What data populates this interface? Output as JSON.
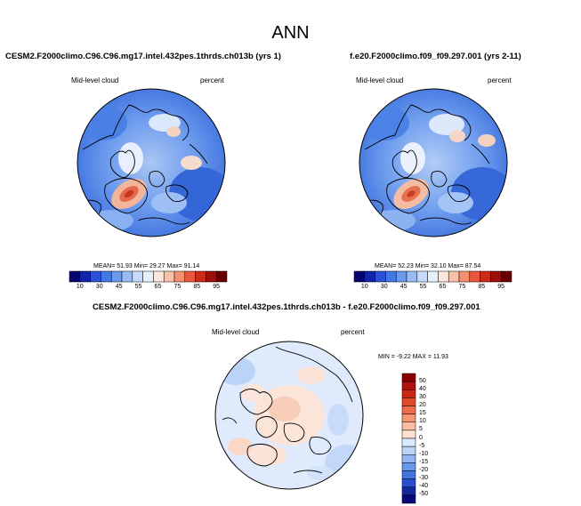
{
  "figure": {
    "title": "ANN"
  },
  "panels": [
    {
      "title": "CESM2.F2000climo.C96.C96.mg17.intel.432pes.1thrds.ch013b (yrs 1)",
      "variable": "Mid-level cloud",
      "units": "percent",
      "stats": "MEAN=  51.93  Min=  29.27  Max=  91.14",
      "colorbar": {
        "levels": [
          "10",
          "30",
          "45",
          "55",
          "65",
          "75",
          "85",
          "95"
        ],
        "colors": [
          "#08066e",
          "#1424a8",
          "#2b52d6",
          "#4378e8",
          "#6b99f0",
          "#98bbf5",
          "#c5dafa",
          "#e6f0fd",
          "#fde7dc",
          "#f9c2a8",
          "#f3906e",
          "#e8583e",
          "#cc2a18",
          "#9c0f08",
          "#660000"
        ]
      }
    },
    {
      "title": "f.e20.F2000climo.f09_f09.297.001 (yrs 2-11)",
      "variable": "Mid-level cloud",
      "units": "percent",
      "stats": "MEAN=  52.23  Min=  32.10  Max=  87.54",
      "colorbar": {
        "levels": [
          "10",
          "30",
          "45",
          "55",
          "65",
          "75",
          "85",
          "95"
        ],
        "colors": [
          "#08066e",
          "#1424a8",
          "#2b52d6",
          "#4378e8",
          "#6b99f0",
          "#98bbf5",
          "#c5dafa",
          "#e6f0fd",
          "#fde7dc",
          "#f9c2a8",
          "#f3906e",
          "#e8583e",
          "#cc2a18",
          "#9c0f08",
          "#660000"
        ]
      }
    }
  ],
  "difference": {
    "title": "CESM2.F2000climo.C96.C96.mg17.intel.432pes.1thrds.ch013b - f.e20.F2000climo.f09_f09.297.001",
    "variable": "Mid-level cloud",
    "units": "percent",
    "stats": "MIN =  -9.22  MAX =  11.93",
    "colorbar": {
      "levels": [
        "50",
        "40",
        "30",
        "20",
        "15",
        "10",
        "5",
        "0",
        "-5",
        "-10",
        "-15",
        "-20",
        "-30",
        "-40",
        "-50"
      ],
      "colors": [
        "#8b0000",
        "#b01010",
        "#cc2616",
        "#e04a2c",
        "#ee6e4c",
        "#f59572",
        "#f9bda2",
        "#fde1d3",
        "#ddeafd",
        "#bdd4f9",
        "#93b6f3",
        "#6a96ec",
        "#4374e2",
        "#2a4fcc",
        "#14289e",
        "#080878"
      ]
    }
  }
}
